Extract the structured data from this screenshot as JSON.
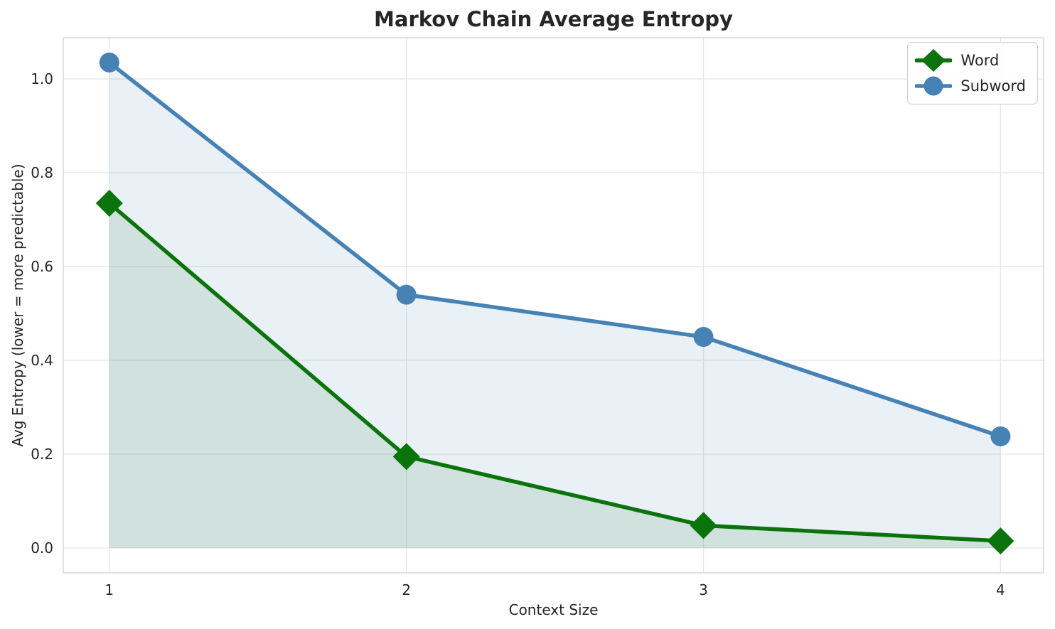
{
  "chart_data": {
    "type": "line",
    "title": "Markov Chain Average Entropy",
    "xlabel": "Context Size",
    "ylabel": "Avg Entropy (lower = more predictable)",
    "x": [
      1,
      2,
      3,
      4
    ],
    "series": [
      {
        "name": "Word",
        "values": [
          0.735,
          0.195,
          0.048,
          0.015
        ],
        "color": "#0b730b",
        "marker": "diamond",
        "area_fill": "rgba(0,100,0,0.10)"
      },
      {
        "name": "Subword",
        "values": [
          1.035,
          0.54,
          0.45,
          0.238
        ],
        "color": "#4682b4",
        "marker": "circle",
        "area_fill": "rgba(70,130,180,0.12)"
      }
    ],
    "xtick_labels": [
      "1",
      "2",
      "3",
      "4"
    ],
    "xtick_values": [
      1,
      2,
      3,
      4
    ],
    "ytick_labels": [
      "0.0",
      "0.2",
      "0.4",
      "0.6",
      "0.8",
      "1.0"
    ],
    "ytick_values": [
      0.0,
      0.2,
      0.4,
      0.6,
      0.8,
      1.0
    ],
    "xlim": [
      0.845,
      4.145
    ],
    "ylim": [
      -0.053,
      1.088
    ],
    "grid": true,
    "grid_color": "#e7e7e7",
    "spine_color": "#d4d4d4",
    "text_color": "#262626",
    "legend_position": "upper right",
    "fill_baseline": 0.0
  }
}
